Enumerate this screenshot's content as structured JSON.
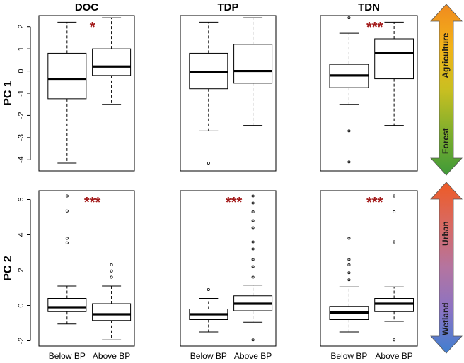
{
  "chart_data": {
    "type": "boxplot",
    "columns": [
      "DOC",
      "TDP",
      "TDN"
    ],
    "rows": [
      "PC 1",
      "PC 2"
    ],
    "groups": [
      "Below BP",
      "Above BP"
    ],
    "panels": [
      {
        "row": "PC 1",
        "column": "DOC",
        "significance": "*",
        "ylim": [
          -4.5,
          2.5
        ],
        "yticks": [
          2,
          1,
          0,
          -1,
          -2,
          -3,
          -4
        ],
        "boxes": [
          {
            "group": "Below BP",
            "whisker_low": -4.15,
            "q1": -1.25,
            "median": -0.35,
            "q3": 0.8,
            "whisker_high": 2.2,
            "outliers": []
          },
          {
            "group": "Above BP",
            "whisker_low": -1.5,
            "q1": -0.2,
            "median": 0.2,
            "q3": 1.0,
            "whisker_high": 2.4,
            "outliers": []
          }
        ]
      },
      {
        "row": "PC 1",
        "column": "TDP",
        "significance": "",
        "ylim": [
          -4.5,
          2.5
        ],
        "yticks": [],
        "boxes": [
          {
            "group": "Below BP",
            "whisker_low": -2.7,
            "q1": -0.8,
            "median": -0.05,
            "q3": 0.8,
            "whisker_high": 2.2,
            "outliers": [
              -4.15
            ]
          },
          {
            "group": "Above BP",
            "whisker_low": -2.45,
            "q1": -0.55,
            "median": 0.0,
            "q3": 1.2,
            "whisker_high": 2.4,
            "outliers": []
          }
        ]
      },
      {
        "row": "PC 1",
        "column": "TDN",
        "significance": "***",
        "ylim": [
          -4.5,
          2.5
        ],
        "yticks": [],
        "boxes": [
          {
            "group": "Below BP",
            "whisker_low": -1.5,
            "q1": -0.75,
            "median": -0.2,
            "q3": 0.3,
            "whisker_high": 1.7,
            "outliers": [
              2.4,
              -2.7,
              -4.1
            ]
          },
          {
            "group": "Above BP",
            "whisker_low": -2.45,
            "q1": -0.35,
            "median": 0.8,
            "q3": 1.45,
            "whisker_high": 2.2,
            "outliers": []
          }
        ]
      },
      {
        "row": "PC 2",
        "column": "DOC",
        "significance": "***",
        "ylim": [
          -2.3,
          6.5
        ],
        "yticks": [
          6,
          4,
          2,
          0,
          -2
        ],
        "boxes": [
          {
            "group": "Below BP",
            "whisker_low": -1.05,
            "q1": -0.35,
            "median": -0.1,
            "q3": 0.4,
            "whisker_high": 1.1,
            "outliers": [
              6.2,
              5.35,
              3.8,
              3.55
            ]
          },
          {
            "group": "Above BP",
            "whisker_low": -1.95,
            "q1": -0.85,
            "median": -0.5,
            "q3": 0.1,
            "whisker_high": 1.1,
            "outliers": [
              2.3,
              1.95,
              1.6
            ]
          }
        ]
      },
      {
        "row": "PC 2",
        "column": "TDP",
        "significance": "***",
        "ylim": [
          -2.3,
          6.5
        ],
        "yticks": [],
        "boxes": [
          {
            "group": "Below BP",
            "whisker_low": -1.5,
            "q1": -0.8,
            "median": -0.5,
            "q3": -0.2,
            "whisker_high": 0.4,
            "outliers": [
              0.9
            ]
          },
          {
            "group": "Above BP",
            "whisker_low": -0.95,
            "q1": -0.3,
            "median": 0.1,
            "q3": 0.55,
            "whisker_high": 1.15,
            "outliers": [
              6.2,
              5.8,
              5.3,
              4.8,
              4.4,
              3.6,
              3.2,
              2.6,
              2.2,
              1.6,
              -1.95
            ]
          }
        ]
      },
      {
        "row": "PC 2",
        "column": "TDN",
        "significance": "***",
        "ylim": [
          -2.3,
          6.5
        ],
        "yticks": [],
        "boxes": [
          {
            "group": "Below BP",
            "whisker_low": -1.5,
            "q1": -0.8,
            "median": -0.4,
            "q3": -0.05,
            "whisker_high": 1.05,
            "outliers": [
              3.8,
              2.6,
              2.3,
              1.85,
              1.45
            ]
          },
          {
            "group": "Above BP",
            "whisker_low": -0.9,
            "q1": -0.35,
            "median": 0.1,
            "q3": 0.4,
            "whisker_high": 1.05,
            "outliers": [
              6.2,
              5.3,
              3.6,
              -1.95
            ]
          }
        ]
      }
    ],
    "gradient_arrows": [
      {
        "row": "PC 1",
        "top_label": "Agriculture",
        "bottom_label": "Forest",
        "colors": [
          "#f08a1f",
          "#f2b319",
          "#c9bf21",
          "#7fae2d",
          "#3f9a38"
        ]
      },
      {
        "row": "PC 2",
        "top_label": "Urban",
        "bottom_label": "Wetland",
        "colors": [
          "#ee5a25",
          "#d86a63",
          "#b474a0",
          "#8a73c4",
          "#3f7fd0"
        ]
      }
    ]
  }
}
